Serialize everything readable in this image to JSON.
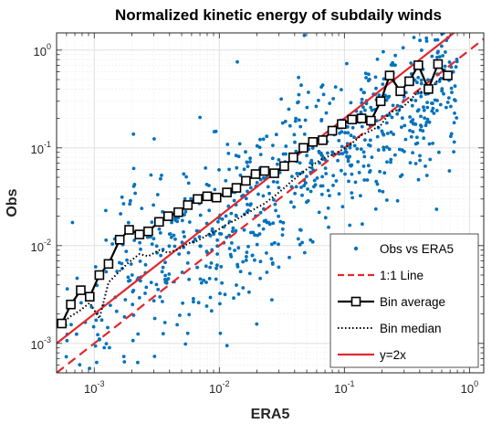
{
  "chart_data": {
    "type": "scatter",
    "title": "Normalized kinetic energy of subdaily winds",
    "xlabel": "ERA5",
    "ylabel": "Obs",
    "xscale": "log",
    "yscale": "log",
    "xlim": [
      0.0005,
      1.3
    ],
    "ylim": [
      0.0005,
      1.5
    ],
    "grid": true,
    "legend_position": "bottom-right",
    "x_ticks": [
      {
        "base": "10",
        "exp": "-3",
        "value": 0.001
      },
      {
        "base": "10",
        "exp": "-2",
        "value": 0.01
      },
      {
        "base": "10",
        "exp": "-1",
        "value": 0.1
      },
      {
        "base": "10",
        "exp": "0",
        "value": 1
      }
    ],
    "y_ticks": [
      {
        "base": "10",
        "exp": "-3",
        "value": 0.001
      },
      {
        "base": "10",
        "exp": "-2",
        "value": 0.01
      },
      {
        "base": "10",
        "exp": "-1",
        "value": 0.1
      },
      {
        "base": "10",
        "exp": "0",
        "value": 1
      }
    ],
    "series": [
      {
        "name": "Obs vs ERA5",
        "kind": "scatter",
        "color": "#0072BD",
        "n_points": 820,
        "scatter_spread_log10": 0.45
      },
      {
        "name": "1:1 Line",
        "kind": "line",
        "style": "dashed",
        "color": "#E0282E",
        "x": [
          0.0005,
          1.3
        ],
        "y": [
          0.0005,
          1.3
        ]
      },
      {
        "name": "Bin average",
        "kind": "line",
        "marker": "square",
        "color": "#000000",
        "x": [
          0.00055,
          0.00065,
          0.00078,
          0.00092,
          0.0011,
          0.0013,
          0.0016,
          0.0019,
          0.0023,
          0.0027,
          0.0033,
          0.0039,
          0.0047,
          0.0056,
          0.0067,
          0.008,
          0.0095,
          0.0115,
          0.0137,
          0.0163,
          0.0195,
          0.023,
          0.0275,
          0.033,
          0.039,
          0.047,
          0.056,
          0.067,
          0.08,
          0.095,
          0.115,
          0.137,
          0.163,
          0.195,
          0.23,
          0.28,
          0.33,
          0.39,
          0.47,
          0.56,
          0.67
        ],
        "y": [
          0.0016,
          0.0025,
          0.0035,
          0.003,
          0.005,
          0.0065,
          0.0115,
          0.0145,
          0.013,
          0.014,
          0.0175,
          0.02,
          0.022,
          0.026,
          0.03,
          0.032,
          0.031,
          0.035,
          0.039,
          0.046,
          0.054,
          0.058,
          0.055,
          0.065,
          0.08,
          0.1,
          0.115,
          0.12,
          0.15,
          0.175,
          0.195,
          0.2,
          0.19,
          0.3,
          0.55,
          0.38,
          0.48,
          0.7,
          0.4,
          0.72,
          0.55
        ]
      },
      {
        "name": "Bin median",
        "kind": "line",
        "style": "dotted",
        "color": "#000000",
        "x": [
          0.00055,
          0.00065,
          0.00078,
          0.00092,
          0.0011,
          0.0013,
          0.0016,
          0.0019,
          0.0023,
          0.0027,
          0.0033,
          0.0039,
          0.0047,
          0.0056,
          0.0067,
          0.008,
          0.0095,
          0.0115,
          0.0137,
          0.0163,
          0.0195,
          0.023,
          0.0275,
          0.033,
          0.039,
          0.047,
          0.056,
          0.067,
          0.08,
          0.095,
          0.115,
          0.137,
          0.163,
          0.195,
          0.23,
          0.28,
          0.33,
          0.39,
          0.47,
          0.56,
          0.67
        ],
        "y": [
          0.0016,
          0.0019,
          0.0022,
          0.0026,
          0.0018,
          0.0042,
          0.0055,
          0.0068,
          0.0082,
          0.0078,
          0.009,
          0.0085,
          0.0092,
          0.0105,
          0.0112,
          0.0128,
          0.0142,
          0.0165,
          0.0185,
          0.021,
          0.024,
          0.027,
          0.032,
          0.039,
          0.047,
          0.057,
          0.067,
          0.078,
          0.085,
          0.095,
          0.112,
          0.135,
          0.15,
          0.17,
          0.23,
          0.25,
          0.3,
          0.38,
          0.36,
          0.5,
          0.52
        ]
      },
      {
        "name": "y=2x",
        "kind": "line",
        "style": "solid",
        "color": "#E0282E",
        "x": [
          0.0005,
          1.3
        ],
        "y": [
          0.001,
          2.6
        ]
      }
    ]
  }
}
